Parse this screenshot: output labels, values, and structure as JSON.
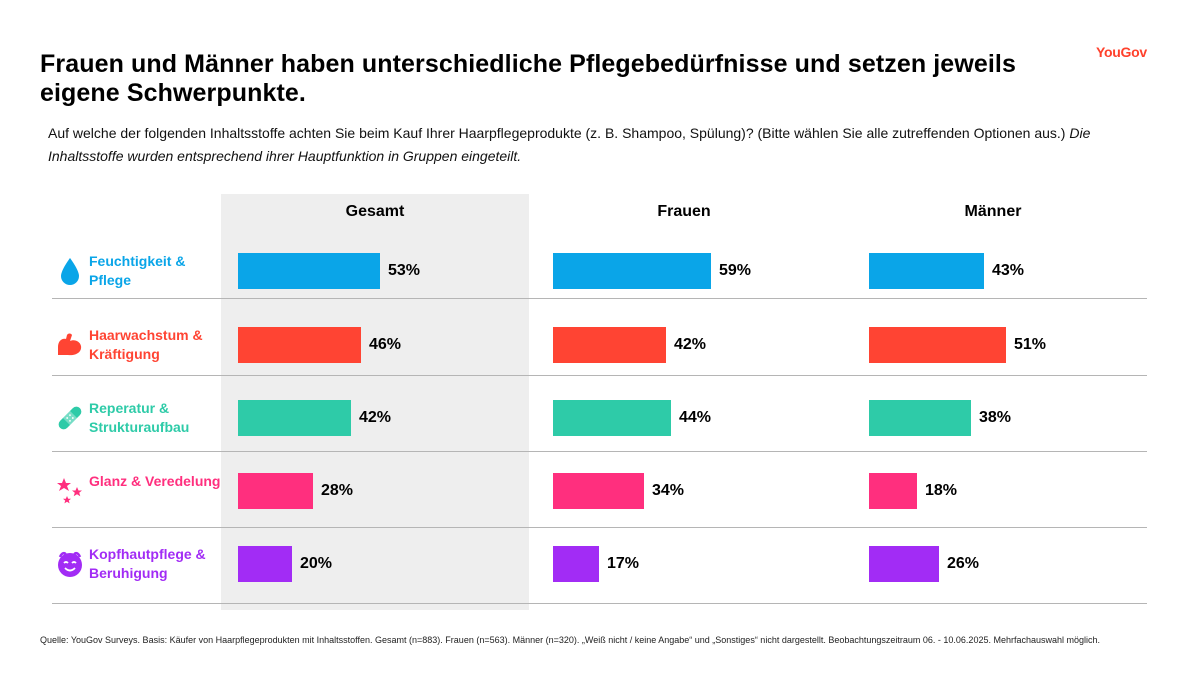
{
  "title": "Frauen und Männer haben unterschiedliche Pflegebedürfnisse und setzen jeweils eigene Schwerpunkte.",
  "brand": "YouGov",
  "question": {
    "text": "Auf welche der folgenden Inhaltsstoffe achten Sie beim Kauf Ihrer Haarpflegeprodukte (z. B. Shampoo, Spülung)? (Bitte wählen Sie alle zutreffenden Optionen aus.)",
    "note": "Die Inhaltsstoffe wurden entsprechend ihrer Hauptfunktion in Gruppen eingeteilt."
  },
  "source": "Quelle: YouGov Surveys. Basis: Käufer von Haarpflegeprodukten mit Inhaltsstoffen. Gesamt (n=883). Frauen (n=563). Männer (n=320). „Weiß nicht / keine Angabe“ und „Sonstiges“ nicht dargestellt. Beobachtungszeitraum 06. - 10.06.2025. Mehrfachauswahl möglich.",
  "chart_data": {
    "type": "bar",
    "orientation": "horizontal",
    "panels": [
      "Gesamt",
      "Frauen",
      "Männer"
    ],
    "categories": [
      {
        "label": "Feuchtigkeit & Pflege",
        "color": "#0aa5e8",
        "icon": "water-drop-icon"
      },
      {
        "label": "Haarwachstum & Kräftigung",
        "color": "#ff4433",
        "icon": "flexed-arm-icon"
      },
      {
        "label": "Reperatur & Strukturaufbau",
        "color": "#2ecba8",
        "icon": "bandage-icon"
      },
      {
        "label": "Glanz & Veredelung",
        "color": "#ff2f7e",
        "icon": "sparkles-icon"
      },
      {
        "label": "Kopfhautpflege & Beruhigung",
        "color": "#a22cf5",
        "icon": "calm-face-icon"
      }
    ],
    "series": [
      {
        "name": "Gesamt",
        "values": [
          53,
          46,
          42,
          28,
          20
        ],
        "labels": [
          "53%",
          "46%",
          "42%",
          "28%",
          "20%"
        ]
      },
      {
        "name": "Frauen",
        "values": [
          59,
          42,
          44,
          34,
          17
        ],
        "labels": [
          "59%",
          "42%",
          "44%",
          "34%",
          "17%"
        ]
      },
      {
        "name": "Männer",
        "values": [
          43,
          51,
          38,
          18,
          26
        ],
        "labels": [
          "43%",
          "51%",
          "38%",
          "18%",
          "26%"
        ]
      }
    ],
    "unit": "%",
    "xlim": [
      0,
      100
    ],
    "highlighted_panel": "Gesamt"
  }
}
